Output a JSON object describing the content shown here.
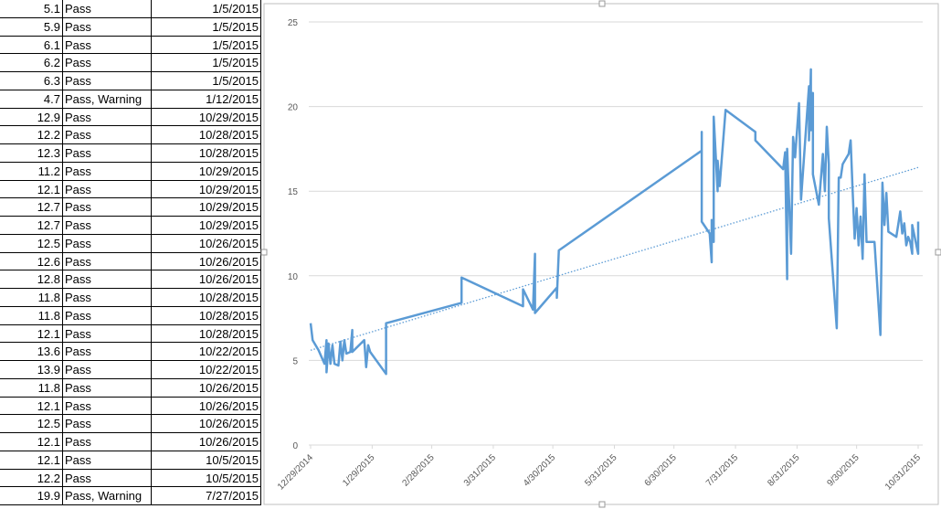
{
  "table": {
    "rows": [
      [
        "5.1",
        "Pass",
        "1/5/2015"
      ],
      [
        "5.9",
        "Pass",
        "1/5/2015"
      ],
      [
        "6.1",
        "Pass",
        "1/5/2015"
      ],
      [
        "6.2",
        "Pass",
        "1/5/2015"
      ],
      [
        "6.3",
        "Pass",
        "1/5/2015"
      ],
      [
        "4.7",
        "Pass, Warning",
        "1/12/2015"
      ],
      [
        "12.9",
        "Pass",
        "10/29/2015"
      ],
      [
        "12.2",
        "Pass",
        "10/28/2015"
      ],
      [
        "12.3",
        "Pass",
        "10/28/2015"
      ],
      [
        "11.2",
        "Pass",
        "10/29/2015"
      ],
      [
        "12.1",
        "Pass",
        "10/29/2015"
      ],
      [
        "12.7",
        "Pass",
        "10/29/2015"
      ],
      [
        "12.7",
        "Pass",
        "10/29/2015"
      ],
      [
        "12.5",
        "Pass",
        "10/26/2015"
      ],
      [
        "12.6",
        "Pass",
        "10/26/2015"
      ],
      [
        "12.8",
        "Pass",
        "10/26/2015"
      ],
      [
        "11.8",
        "Pass",
        "10/28/2015"
      ],
      [
        "11.8",
        "Pass",
        "10/28/2015"
      ],
      [
        "12.1",
        "Pass",
        "10/28/2015"
      ],
      [
        "13.6",
        "Pass",
        "10/22/2015"
      ],
      [
        "13.9",
        "Pass",
        "10/22/2015"
      ],
      [
        "11.8",
        "Pass",
        "10/26/2015"
      ],
      [
        "12.1",
        "Pass",
        "10/26/2015"
      ],
      [
        "12.5",
        "Pass",
        "10/26/2015"
      ],
      [
        "12.1",
        "Pass",
        "10/26/2015"
      ],
      [
        "12.1",
        "Pass",
        "10/5/2015"
      ],
      [
        "12.2",
        "Pass",
        "10/5/2015"
      ],
      [
        "19.9",
        "Pass, Warning",
        "7/27/2015"
      ]
    ]
  },
  "chart_data": {
    "type": "line",
    "xlim": [
      "12/29/2014",
      "10/31/2015"
    ],
    "xticks": [
      "12/29/2014",
      "1/29/2015",
      "2/28/2015",
      "3/31/2015",
      "4/30/2015",
      "5/31/2015",
      "6/30/2015",
      "7/31/2015",
      "8/31/2015",
      "9/30/2015",
      "10/31/2015"
    ],
    "ylim": [
      0,
      25
    ],
    "yticks": [
      0,
      5,
      10,
      15,
      20,
      25
    ],
    "grid": true,
    "trendline_values": [
      5.6,
      16.4
    ],
    "series": [
      {
        "color": "#5b9bd5",
        "x": [
          "12/29/2014",
          "12/30/2014",
          "1/2/2015",
          "1/5/2015",
          "1/6/2015",
          "1/6/2015",
          "1/7/2015",
          "1/8/2015",
          "1/9/2015",
          "1/10/2015",
          "1/12/2015",
          "1/13/2015",
          "1/14/2015",
          "1/15/2015",
          "1/16/2015",
          "1/18/2015",
          "1/19/2015",
          "1/19/2015",
          "1/25/2015",
          "1/26/2015",
          "1/27/2015",
          "1/28/2015",
          "2/5/2015",
          "2/5/2015",
          "3/15/2015",
          "3/15/2015",
          "4/15/2015",
          "4/15/2015",
          "4/20/2015",
          "4/21/2015",
          "4/21/2015",
          "5/2/2015",
          "5/2/2015",
          "5/3/2015",
          "7/14/2015",
          "7/14/2015",
          "7/14/2015",
          "7/18/2015",
          "7/19/2015",
          "7/19/2015",
          "7/20/2015",
          "7/20/2015",
          "7/22/2015",
          "7/22/2015",
          "7/23/2015",
          "7/26/2015",
          "8/10/2015",
          "8/10/2015",
          "8/24/2015",
          "8/25/2015",
          "8/26/2015",
          "8/26/2015",
          "8/28/2015",
          "8/29/2015",
          "8/30/2015",
          "9/1/2015",
          "9/2/2015",
          "9/6/2015",
          "9/6/2015",
          "9/7/2015",
          "9/7/2015",
          "9/8/2015",
          "9/8/2015",
          "9/11/2015",
          "9/13/2015",
          "9/14/2015",
          "9/15/2015",
          "9/16/2015",
          "9/16/2015",
          "9/20/2015",
          "9/21/2015",
          "9/22/2015",
          "9/23/2015",
          "9/26/2015",
          "9/27/2015",
          "9/28/2015",
          "9/29/2015",
          "9/30/2015",
          "10/1/2015",
          "10/2/2015",
          "10/3/2015",
          "10/4/2015",
          "10/5/2015",
          "10/9/2015",
          "10/12/2015",
          "10/13/2015",
          "10/14/2015",
          "10/15/2015",
          "10/16/2015",
          "10/20/2015",
          "10/22/2015",
          "10/23/2015",
          "10/24/2015",
          "10/25/2015",
          "10/26/2015",
          "10/27/2015",
          "10/28/2015",
          "10/28/2015",
          "10/31/2015",
          "10/31/2015"
        ],
        "values": [
          7.2,
          6.2,
          5.6,
          4.8,
          6.2,
          4.3,
          6.0,
          4.8,
          5.9,
          4.8,
          4.7,
          6.1,
          5.0,
          6.2,
          5.4,
          5.5,
          6.8,
          5.5,
          6.2,
          4.6,
          5.9,
          5.5,
          4.2,
          7.2,
          8.4,
          9.9,
          8.2,
          9.2,
          8.0,
          11.3,
          7.8,
          9.3,
          8.7,
          11.5,
          17.4,
          18.5,
          13.2,
          12.5,
          10.8,
          13.3,
          12.0,
          19.4,
          15.0,
          16.8,
          15.3,
          19.8,
          18.5,
          18.0,
          16.3,
          17.3,
          9.8,
          17.5,
          11.3,
          18.2,
          17.0,
          20.2,
          14.5,
          21.2,
          18.0,
          22.2,
          18.6,
          20.8,
          16.0,
          14.2,
          17.2,
          15.0,
          18.8,
          16.6,
          13.4,
          6.9,
          15.8,
          15.8,
          16.6,
          17.2,
          18.0,
          15.0,
          12.2,
          14.0,
          11.8,
          13.5,
          11.0,
          16.0,
          12.0,
          12.0,
          6.5,
          15.5,
          13.0,
          14.9,
          12.6,
          12.3,
          13.8,
          12.5,
          13.1,
          11.8,
          12.3,
          12.0,
          11.3,
          13.0,
          11.3,
          13.2
        ]
      }
    ]
  }
}
